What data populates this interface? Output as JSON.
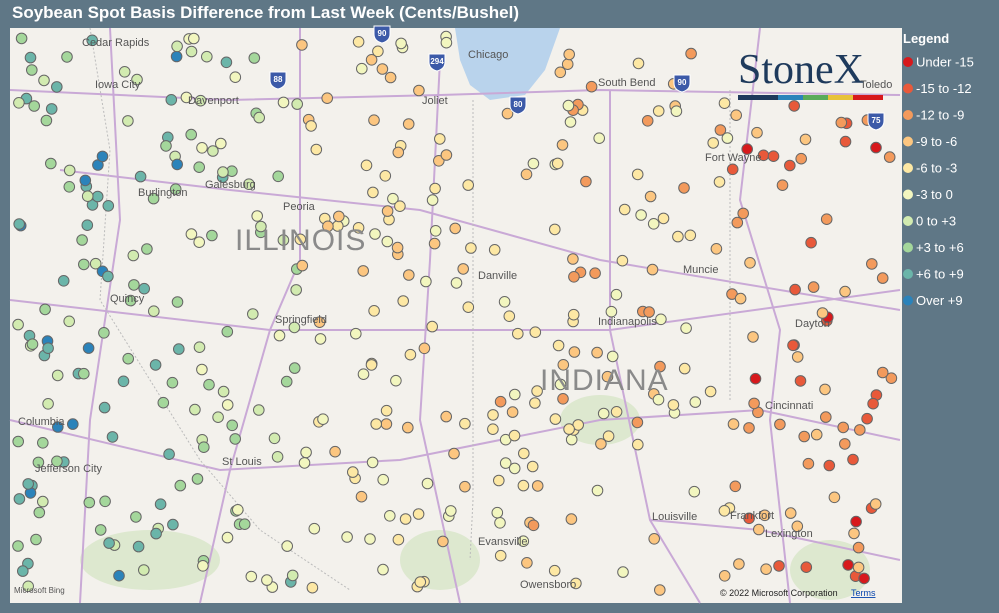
{
  "header": {
    "title": "Soybean Spot Basis Difference from Last Week (Cents/Bushel)"
  },
  "legend": {
    "title": "Legend",
    "items": [
      {
        "name": "Under -15",
        "color": "#d7191c"
      },
      {
        "name": "-15 to -12",
        "color": "#e8593a"
      },
      {
        "name": "-12 to -9",
        "color": "#f39a5c"
      },
      {
        "name": "-9 to -6",
        "color": "#fcc680"
      },
      {
        "name": "-6 to -3",
        "color": "#fde8a4"
      },
      {
        "name": "-3 to 0",
        "color": "#f2f6bf"
      },
      {
        "name": "0 to +3",
        "color": "#d2ebb0"
      },
      {
        "name": "+3 to +6",
        "color": "#a4d79b"
      },
      {
        "name": "+6 to +9",
        "color": "#6bb5a9"
      },
      {
        "name": "Over +9",
        "color": "#2b83ba"
      }
    ]
  },
  "map": {
    "logo": "StoneX",
    "states": [
      "ILLINOIS",
      "INDIANA"
    ],
    "cities": [
      "Cedar Rapids",
      "Iowa City",
      "Davenport",
      "Galesburg",
      "Burlington",
      "Peoria",
      "Quincy",
      "Springfield",
      "Columbia",
      "Jefferson City",
      "St Louis",
      "Chicago",
      "Joliet",
      "South Bend",
      "Fort Wayne",
      "Toledo",
      "Muncie",
      "Danville",
      "Indianapolis",
      "Dayton",
      "Cincinnati",
      "Louisville",
      "Frankfort",
      "Lexington",
      "Evansville",
      "Owensboro"
    ],
    "shields": [
      "90",
      "294",
      "88",
      "80",
      "90",
      "75"
    ],
    "attribution": "Microsoft Bing",
    "copyright": "© 2022 Microsoft Corporation",
    "terms": "Terms"
  }
}
